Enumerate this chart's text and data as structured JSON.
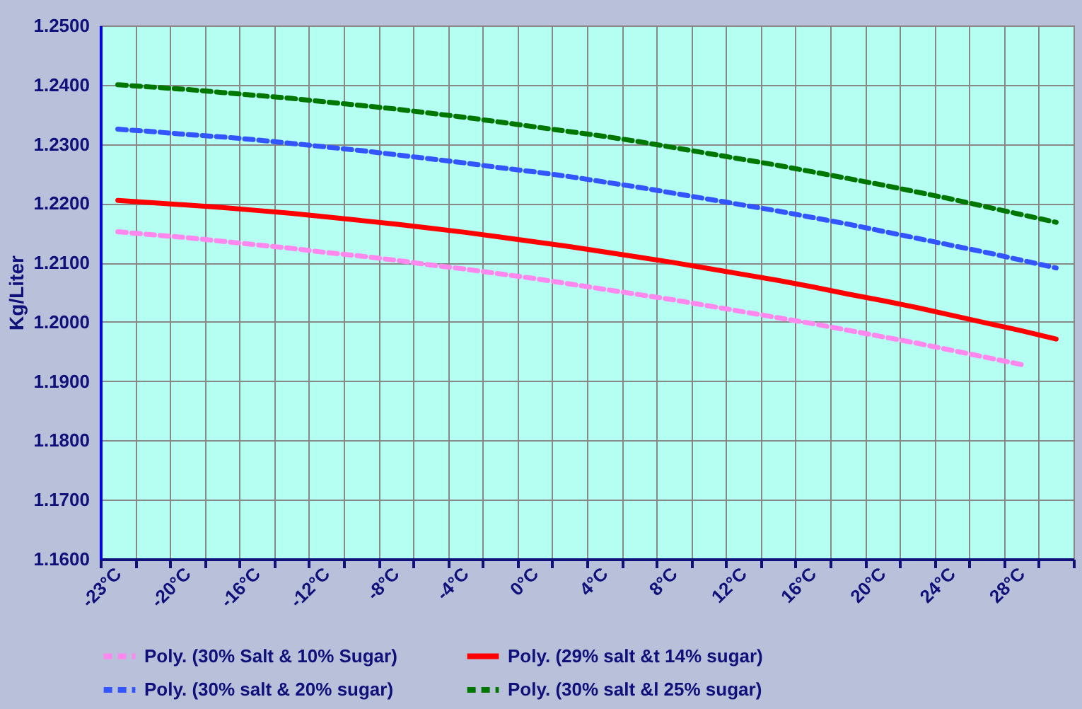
{
  "chart_data": {
    "type": "line",
    "ylabel": "Kg/Liter",
    "categories": [
      "-23°C",
      null,
      "-20°C",
      null,
      "-16°C",
      null,
      "-12°C",
      null,
      "-8°C",
      null,
      "-4°C",
      null,
      "0°C",
      null,
      "4°C",
      null,
      "8°C",
      null,
      "12°C",
      null,
      "16°C",
      null,
      "20°C",
      null,
      "24°C",
      null,
      "28°C",
      null
    ],
    "ylim": [
      1.16,
      1.25
    ],
    "yticks": [
      {
        "value": 1.16,
        "label": "1.1600"
      },
      {
        "value": 1.17,
        "label": "1.1700"
      },
      {
        "value": 1.18,
        "label": "1.1800"
      },
      {
        "value": 1.19,
        "label": "1.1900"
      },
      {
        "value": 1.2,
        "label": "1.2000"
      },
      {
        "value": 1.21,
        "label": "1.2100"
      },
      {
        "value": 1.22,
        "label": "1.2200"
      },
      {
        "value": 1.23,
        "label": "1.2300"
      },
      {
        "value": 1.24,
        "label": "1.2400"
      },
      {
        "value": 1.25,
        "label": "1.2500"
      }
    ],
    "grid": true,
    "legend": "bottom",
    "marker": "none",
    "series": [
      {
        "name": "Poly. (30% Salt & 10% Sugar)",
        "color": "#ff88ee",
        "line_style": "dashed",
        "values": [
          1.2152,
          1.2147,
          1.2142,
          1.2136,
          1.213,
          1.2124,
          1.2117,
          1.2111,
          1.2104,
          1.2096,
          1.2089,
          1.2081,
          1.2073,
          1.2064,
          1.2055,
          1.2046,
          1.2037,
          1.2027,
          1.2017,
          1.2007,
          1.1997,
          1.1986,
          1.1975,
          1.1964,
          1.1952,
          1.194,
          1.1928,
          null
        ]
      },
      {
        "name": "Poly. (29% salt &t 14% sugar)",
        "color": "#ff0000",
        "line_style": "solid",
        "values": [
          1.2205,
          1.2201,
          1.2197,
          1.2193,
          1.2188,
          1.2183,
          1.2177,
          1.2171,
          1.2165,
          1.2158,
          1.2151,
          1.2143,
          1.2135,
          1.2127,
          1.2118,
          1.2109,
          1.21,
          1.209,
          1.208,
          1.207,
          1.2059,
          1.2047,
          1.2036,
          1.2024,
          1.2011,
          1.1998,
          1.1985,
          1.1971
        ]
      },
      {
        "name": "Poly. (30% salt &  20% sugar)",
        "color": "#3355ff",
        "line_style": "dashed",
        "values": [
          1.2325,
          1.2321,
          1.2316,
          1.2312,
          1.2307,
          1.2301,
          1.2295,
          1.2289,
          1.2282,
          1.2275,
          1.2268,
          1.226,
          1.2253,
          1.2245,
          1.2236,
          1.2227,
          1.2217,
          1.2207,
          1.2197,
          1.2187,
          1.2176,
          1.2165,
          1.2153,
          1.2141,
          1.2129,
          1.2117,
          1.2104,
          1.2091
        ]
      },
      {
        "name": "Poly. (30% salt &l 25% sugar)",
        "color": "#007700",
        "line_style": "dashed",
        "values": [
          1.24,
          1.2396,
          1.2392,
          1.2387,
          1.2382,
          1.2377,
          1.2371,
          1.2365,
          1.2359,
          1.2352,
          1.2345,
          1.2337,
          1.2329,
          1.2321,
          1.2313,
          1.2304,
          1.2294,
          1.2284,
          1.2274,
          1.2264,
          1.2253,
          1.2242,
          1.2231,
          1.2219,
          1.2207,
          1.2194,
          1.2181,
          1.2168
        ]
      }
    ]
  }
}
